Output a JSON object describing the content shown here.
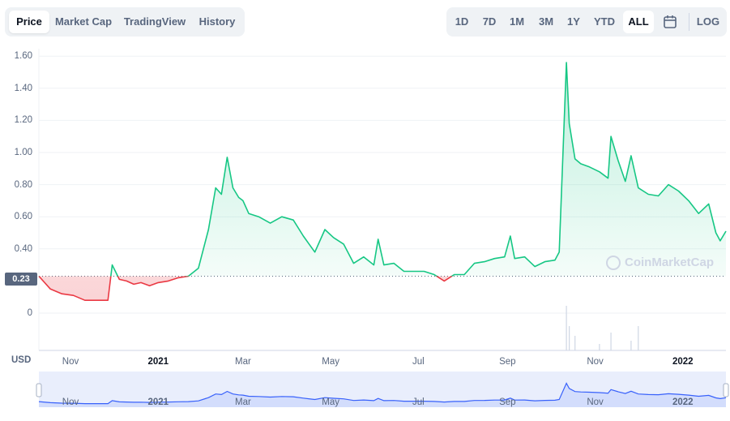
{
  "tabs": [
    {
      "label": "Price",
      "active": true
    },
    {
      "label": "Market Cap",
      "active": false
    },
    {
      "label": "TradingView",
      "active": false
    },
    {
      "label": "History",
      "active": false
    }
  ],
  "ranges": [
    {
      "label": "1D",
      "active": false
    },
    {
      "label": "7D",
      "active": false
    },
    {
      "label": "1M",
      "active": false
    },
    {
      "label": "3M",
      "active": false
    },
    {
      "label": "1Y",
      "active": false
    },
    {
      "label": "YTD",
      "active": false
    },
    {
      "label": "ALL",
      "active": true
    }
  ],
  "log_label": "LOG",
  "calendar_icon": "calendar-icon",
  "currency_label": "USD",
  "current_price_tag": "0.23",
  "watermark": "CoinMarketCap",
  "colors": {
    "up": "#16c784",
    "down": "#ea3943",
    "navigator": "#3861fb"
  },
  "chart_data": {
    "type": "area",
    "title": "",
    "xlabel": "",
    "ylabel": "",
    "ylim": [
      0,
      1.7
    ],
    "y_ticks": [
      "1.60",
      "1.40",
      "1.20",
      "1.00",
      "0.80",
      "0.60",
      "0.40",
      "0"
    ],
    "x_ticks": [
      {
        "label": "Nov",
        "date": "2020-11-01",
        "bold": false
      },
      {
        "label": "2021",
        "date": "2021-01-01",
        "bold": true
      },
      {
        "label": "Mar",
        "date": "2021-03-01",
        "bold": false
      },
      {
        "label": "May",
        "date": "2021-05-01",
        "bold": false
      },
      {
        "label": "Jul",
        "date": "2021-07-01",
        "bold": false
      },
      {
        "label": "Sep",
        "date": "2021-09-01",
        "bold": false
      },
      {
        "label": "Nov",
        "date": "2021-11-01",
        "bold": false
      },
      {
        "label": "2022",
        "date": "2022-01-01",
        "bold": true
      }
    ],
    "baseline_price": 0.23,
    "series": [
      {
        "x": [
          "2020-10-10",
          "2020-10-18",
          "2020-10-26",
          "2020-11-03",
          "2020-11-11",
          "2020-11-19",
          "2020-11-27",
          "2020-11-30",
          "2020-12-05",
          "2020-12-10",
          "2020-12-15",
          "2020-12-20",
          "2020-12-26",
          "2021-01-01",
          "2021-01-08",
          "2021-01-15",
          "2021-01-22",
          "2021-01-29",
          "2021-02-05",
          "2021-02-10",
          "2021-02-14",
          "2021-02-18",
          "2021-02-22",
          "2021-02-26",
          "2021-03-01",
          "2021-03-05",
          "2021-03-12",
          "2021-03-20",
          "2021-03-28",
          "2021-04-05",
          "2021-04-12",
          "2021-04-20",
          "2021-04-27",
          "2021-05-03",
          "2021-05-10",
          "2021-05-17",
          "2021-05-24",
          "2021-05-31",
          "2021-06-03",
          "2021-06-07",
          "2021-06-14",
          "2021-06-21",
          "2021-06-28",
          "2021-07-05",
          "2021-07-12",
          "2021-07-19",
          "2021-07-26",
          "2021-08-02",
          "2021-08-09",
          "2021-08-16",
          "2021-08-23",
          "2021-08-30",
          "2021-09-03",
          "2021-09-06",
          "2021-09-13",
          "2021-09-20",
          "2021-09-27",
          "2021-10-04",
          "2021-10-07",
          "2021-10-12",
          "2021-10-14",
          "2021-10-18",
          "2021-10-22",
          "2021-10-28",
          "2021-11-04",
          "2021-11-10",
          "2021-11-12",
          "2021-11-17",
          "2021-11-22",
          "2021-11-26",
          "2021-12-01",
          "2021-12-08",
          "2021-12-15",
          "2021-12-22",
          "2021-12-29",
          "2022-01-05",
          "2022-01-12",
          "2022-01-19",
          "2022-01-24",
          "2022-01-27",
          "2022-01-31"
        ],
        "values": [
          0.23,
          0.15,
          0.12,
          0.11,
          0.08,
          0.08,
          0.08,
          0.3,
          0.21,
          0.2,
          0.18,
          0.19,
          0.17,
          0.19,
          0.2,
          0.22,
          0.23,
          0.28,
          0.52,
          0.78,
          0.74,
          0.97,
          0.78,
          0.72,
          0.7,
          0.62,
          0.6,
          0.56,
          0.6,
          0.58,
          0.48,
          0.38,
          0.52,
          0.47,
          0.43,
          0.31,
          0.35,
          0.3,
          0.46,
          0.3,
          0.31,
          0.26,
          0.26,
          0.26,
          0.24,
          0.2,
          0.24,
          0.24,
          0.31,
          0.32,
          0.34,
          0.35,
          0.48,
          0.34,
          0.35,
          0.29,
          0.32,
          0.33,
          0.38,
          1.56,
          1.18,
          0.96,
          0.93,
          0.91,
          0.88,
          0.84,
          1.1,
          0.95,
          0.82,
          0.98,
          0.78,
          0.74,
          0.73,
          0.8,
          0.76,
          0.7,
          0.62,
          0.68,
          0.5,
          0.45,
          0.51
        ]
      }
    ],
    "volume": {
      "x": [
        "2021-10-12",
        "2021-10-14",
        "2021-10-18",
        "2021-11-04",
        "2021-11-12",
        "2021-11-26",
        "2021-12-01"
      ],
      "values": [
        0.55,
        0.3,
        0.18,
        0.08,
        0.22,
        0.12,
        0.3
      ]
    }
  }
}
